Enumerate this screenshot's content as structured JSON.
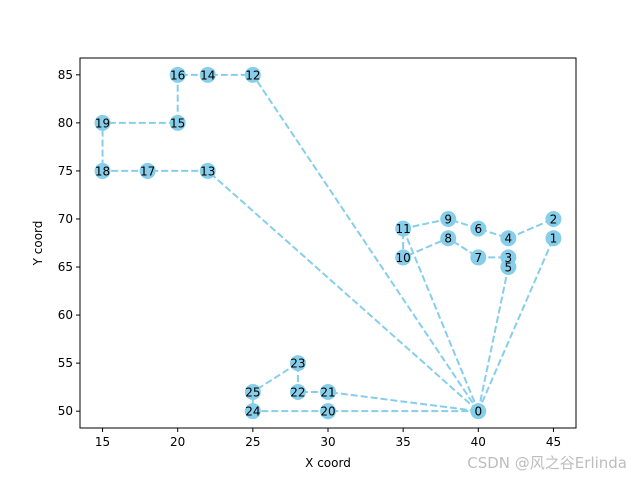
{
  "chart_data": {
    "type": "line",
    "xlabel": "X coord",
    "ylabel": "Y coord",
    "xlim": [
      13.5,
      46.5
    ],
    "ylim": [
      48.25,
      86.75
    ],
    "xticks": [
      15,
      20,
      25,
      30,
      35,
      40,
      45
    ],
    "yticks": [
      50,
      55,
      60,
      65,
      70,
      75,
      80,
      85
    ],
    "grid": false,
    "line_style": "dashed",
    "color": "#87CEEB",
    "nodes": [
      {
        "id": "0",
        "x": 40,
        "y": 50
      },
      {
        "id": "1",
        "x": 45,
        "y": 68
      },
      {
        "id": "2",
        "x": 45,
        "y": 70
      },
      {
        "id": "3",
        "x": 42,
        "y": 66
      },
      {
        "id": "4",
        "x": 42,
        "y": 68
      },
      {
        "id": "5",
        "x": 42,
        "y": 65
      },
      {
        "id": "6",
        "x": 40,
        "y": 69
      },
      {
        "id": "7",
        "x": 40,
        "y": 66
      },
      {
        "id": "8",
        "x": 38,
        "y": 68
      },
      {
        "id": "9",
        "x": 38,
        "y": 70
      },
      {
        "id": "10",
        "x": 35,
        "y": 66
      },
      {
        "id": "11",
        "x": 35,
        "y": 69
      },
      {
        "id": "12",
        "x": 25,
        "y": 85
      },
      {
        "id": "13",
        "x": 22,
        "y": 75
      },
      {
        "id": "14",
        "x": 22,
        "y": 85
      },
      {
        "id": "15",
        "x": 20,
        "y": 80
      },
      {
        "id": "16",
        "x": 20,
        "y": 85
      },
      {
        "id": "17",
        "x": 18,
        "y": 75
      },
      {
        "id": "18",
        "x": 15,
        "y": 75
      },
      {
        "id": "19",
        "x": 15,
        "y": 80
      },
      {
        "id": "20",
        "x": 30,
        "y": 50
      },
      {
        "id": "21",
        "x": 30,
        "y": 52
      },
      {
        "id": "22",
        "x": 28,
        "y": 52
      },
      {
        "id": "23",
        "x": 28,
        "y": 55
      },
      {
        "id": "24",
        "x": 25,
        "y": 50
      },
      {
        "id": "25",
        "x": 25,
        "y": 52
      }
    ],
    "routes": [
      [
        "0",
        "5",
        "3",
        "7",
        "8",
        "10",
        "11",
        "9",
        "6",
        "4",
        "2",
        "1",
        "0"
      ],
      [
        "0",
        "12",
        "14",
        "16",
        "15",
        "19",
        "18",
        "17",
        "13",
        "0"
      ],
      [
        "0",
        "11"
      ],
      [
        "0",
        "20",
        "24",
        "25",
        "23",
        "22",
        "21",
        "0"
      ]
    ]
  },
  "watermark": "CSDN @风之谷Erlinda"
}
